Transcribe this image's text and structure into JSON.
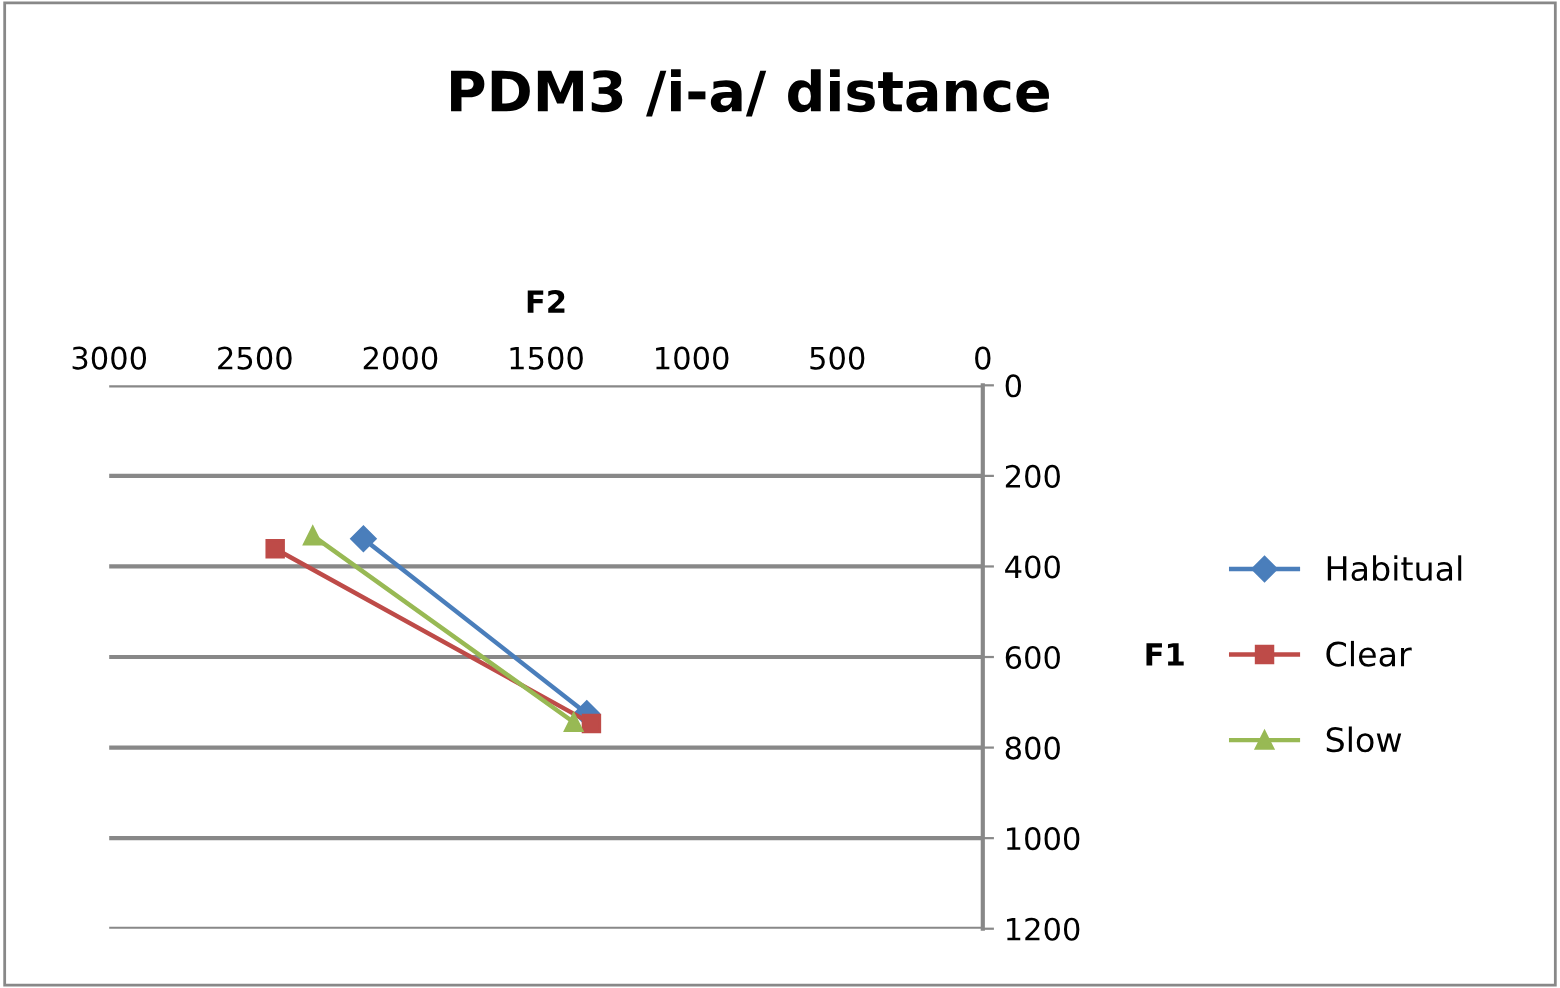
{
  "chart_data": {
    "type": "line",
    "title": "PDM3 /i-a/ distance",
    "xlabel": "F2",
    "ylabel": "F1",
    "xlim": [
      3000,
      0
    ],
    "xticks": [
      3000,
      2500,
      2000,
      1500,
      1000,
      500,
      0
    ],
    "ylim": [
      1200,
      0
    ],
    "yticks": [
      0,
      200,
      400,
      600,
      800,
      1000,
      1200
    ],
    "grid": "y",
    "legend": "right",
    "line_style": "solid",
    "series": [
      {
        "name": "Habitual",
        "color": "#4a7ebb",
        "marker": "diamond",
        "x": [
          2127,
          1360
        ],
        "values": [
          339,
          725
        ]
      },
      {
        "name": "Clear",
        "color": "#be4b48",
        "marker": "square",
        "x": [
          2430,
          1344
        ],
        "values": [
          361,
          747
        ]
      },
      {
        "name": "Slow",
        "color": "#98b954",
        "marker": "triangle",
        "x": [
          2301,
          1405
        ],
        "values": [
          332,
          744
        ]
      }
    ]
  }
}
